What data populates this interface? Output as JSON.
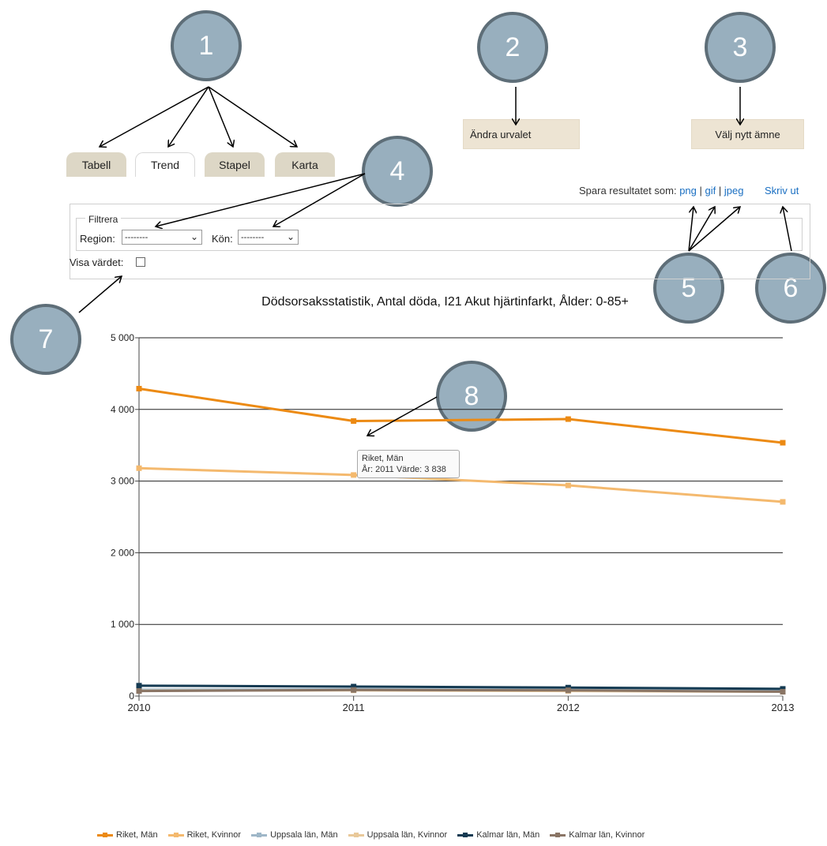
{
  "tabs": [
    {
      "label": "Tabell",
      "active": false
    },
    {
      "label": "Trend",
      "active": true
    },
    {
      "label": "Stapel",
      "active": false
    },
    {
      "label": "Karta",
      "active": false
    }
  ],
  "buttons": {
    "change_selection": "Ändra urvalet",
    "choose_topic": "Välj nytt ämne"
  },
  "save": {
    "label": "Spara resultatet som:",
    "png": "png",
    "gif": "gif",
    "jpeg": "jpeg",
    "sep": "|",
    "print": "Skriv ut"
  },
  "filter": {
    "legend": "Filtrera",
    "region_label": "Region:",
    "region_value": "--------",
    "kon_label": "Kön:",
    "kon_value": "--------",
    "show_value_label": "Visa värdet:",
    "show_value_checked": false
  },
  "annotations": [
    "1",
    "2",
    "3",
    "4",
    "5",
    "6",
    "7",
    "8"
  ],
  "tooltip": {
    "series": "Riket, Män",
    "detail": "År: 2011 Värde: 3 838"
  },
  "chart_data": {
    "type": "line",
    "title": "Dödsorsaksstatistik, Antal döda, I21 Akut hjärtinfarkt, Ålder: 0-85+",
    "x": [
      "2010",
      "2011",
      "2012",
      "2013"
    ],
    "ylim": [
      0,
      5000
    ],
    "yticks": [
      0,
      1000,
      2000,
      3000,
      4000,
      5000
    ],
    "ytick_labels": [
      "0",
      "1 000",
      "2 000",
      "3 000",
      "4 000",
      "5 000"
    ],
    "grid": true,
    "legend_position": "bottom",
    "series": [
      {
        "name": "Riket, Män",
        "color": "#ec8a13",
        "values": [
          4290,
          3838,
          3865,
          3535
        ]
      },
      {
        "name": "Riket, Kvinnor",
        "color": "#f4b96e",
        "values": [
          3180,
          3085,
          2940,
          2710
        ]
      },
      {
        "name": "Uppsala län, Män",
        "color": "#9fb7c8",
        "values": [
          90,
          95,
          85,
          70
        ]
      },
      {
        "name": "Uppsala län, Kvinnor",
        "color": "#e9c99a",
        "values": [
          75,
          80,
          70,
          60
        ]
      },
      {
        "name": "Kalmar län, Män",
        "color": "#143a52",
        "values": [
          145,
          132,
          118,
          100
        ]
      },
      {
        "name": "Kalmar län, Kvinnor",
        "color": "#8a7565",
        "values": [
          70,
          85,
          80,
          60
        ]
      }
    ]
  }
}
